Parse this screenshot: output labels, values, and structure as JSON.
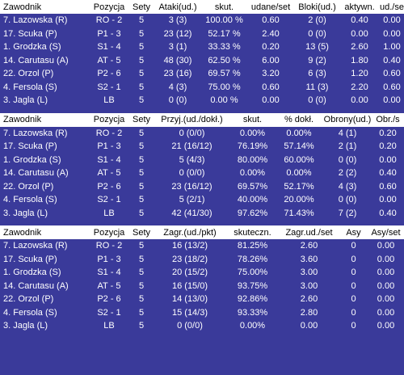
{
  "tables": [
    {
      "headers": [
        "Zawodnik",
        "Pozycja",
        "Sety",
        "Ataki(ud.)",
        "skut.",
        "udane/set",
        "Bloki(ud.)",
        "aktywn.",
        "ud./se"
      ],
      "rows": [
        [
          "7. Lazowska (R)",
          "RO - 2",
          "5",
          "3 (3)",
          "100.00 %",
          "0.60",
          "2 (0)",
          "0.40",
          "0.00"
        ],
        [
          "17. Scuka (P)",
          "P1 - 3",
          "5",
          "23 (12)",
          "52.17 %",
          "2.40",
          "0 (0)",
          "0.00",
          "0.00"
        ],
        [
          "1. Grodzka (S)",
          "S1 - 4",
          "5",
          "3 (1)",
          "33.33 %",
          "0.20",
          "13 (5)",
          "2.60",
          "1.00"
        ],
        [
          "14. Carutasu (A)",
          "AT - 5",
          "5",
          "48 (30)",
          "62.50 %",
          "6.00",
          "9 (2)",
          "1.80",
          "0.40"
        ],
        [
          "22. Orzol (P)",
          "P2 - 6",
          "5",
          "23 (16)",
          "69.57 %",
          "3.20",
          "6 (3)",
          "1.20",
          "0.60"
        ],
        [
          "4. Fersola (S)",
          "S2 - 1",
          "5",
          "4 (3)",
          "75.00 %",
          "0.60",
          "11 (3)",
          "2.20",
          "0.60"
        ],
        [
          "3. Jagla (L)",
          "LB",
          "5",
          "0 (0)",
          "0.00 %",
          "0.00",
          "0 (0)",
          "0.00",
          "0.00"
        ]
      ]
    },
    {
      "headers": [
        "Zawodnik",
        "Pozycja",
        "Sety",
        "Przyj.(ud./dokł.)",
        "skut.",
        "% dokł.",
        "Obrony(ud.)",
        "Obr./s"
      ],
      "rows": [
        [
          "7. Lazowska (R)",
          "RO - 2",
          "5",
          "0 (0/0)",
          "0.00%",
          "0.00%",
          "4 (1)",
          "0.20"
        ],
        [
          "17. Scuka (P)",
          "P1 - 3",
          "5",
          "21 (16/12)",
          "76.19%",
          "57.14%",
          "2 (1)",
          "0.20"
        ],
        [
          "1. Grodzka (S)",
          "S1 - 4",
          "5",
          "5 (4/3)",
          "80.00%",
          "60.00%",
          "0 (0)",
          "0.00"
        ],
        [
          "14. Carutasu (A)",
          "AT - 5",
          "5",
          "0 (0/0)",
          "0.00%",
          "0.00%",
          "2 (2)",
          "0.40"
        ],
        [
          "22. Orzol (P)",
          "P2 - 6",
          "5",
          "23 (16/12)",
          "69.57%",
          "52.17%",
          "4 (3)",
          "0.60"
        ],
        [
          "4. Fersola (S)",
          "S2 - 1",
          "5",
          "5 (2/1)",
          "40.00%",
          "20.00%",
          "0 (0)",
          "0.00"
        ],
        [
          "3. Jagla (L)",
          "LB",
          "5",
          "42 (41/30)",
          "97.62%",
          "71.43%",
          "7 (2)",
          "0.40"
        ]
      ]
    },
    {
      "headers": [
        "Zawodnik",
        "Pozycja",
        "Sety",
        "Zagr.(ud./pkt)",
        "skuteczn.",
        "Zagr.ud./set",
        "Asy",
        "Asy/set"
      ],
      "rows": [
        [
          "7. Lazowska (R)",
          "RO - 2",
          "5",
          "16 (13/2)",
          "81.25%",
          "2.60",
          "0",
          "0.00"
        ],
        [
          "17. Scuka (P)",
          "P1 - 3",
          "5",
          "23 (18/2)",
          "78.26%",
          "3.60",
          "0",
          "0.00"
        ],
        [
          "1. Grodzka (S)",
          "S1 - 4",
          "5",
          "20 (15/2)",
          "75.00%",
          "3.00",
          "0",
          "0.00"
        ],
        [
          "14. Carutasu (A)",
          "AT - 5",
          "5",
          "16 (15/0)",
          "93.75%",
          "3.00",
          "0",
          "0.00"
        ],
        [
          "22. Orzol (P)",
          "P2 - 6",
          "5",
          "14 (13/0)",
          "92.86%",
          "2.60",
          "0",
          "0.00"
        ],
        [
          "4. Fersola (S)",
          "S2 - 1",
          "5",
          "15 (14/3)",
          "93.33%",
          "2.80",
          "0",
          "0.00"
        ],
        [
          "3. Jagla (L)",
          "LB",
          "5",
          "0 (0/0)",
          "0.00%",
          "0.00",
          "0",
          "0.00"
        ]
      ]
    }
  ],
  "colors": {
    "background": "#3a3a9a",
    "header_bg": "#ffffff",
    "header_text": "#000000",
    "row_text": "#ffffff"
  }
}
